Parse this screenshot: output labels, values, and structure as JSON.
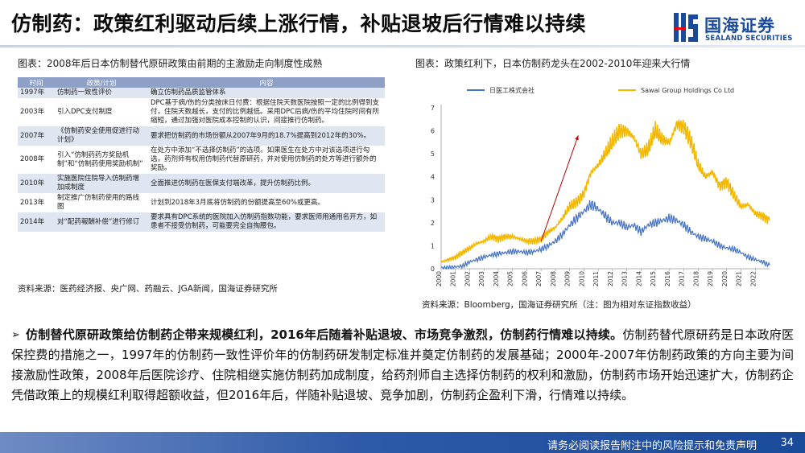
{
  "header": {
    "title": "仿制药：政策红利驱动后续上涨行情，补贴退坡后行情难以持续",
    "logo_cn": "国海证券",
    "logo_en": "SEALAND SECURITIES"
  },
  "left": {
    "caption": "图表：2008年后日本仿制替代原研政策由前期的主激励走向制度性成熟",
    "columns": [
      "时间",
      "政策/计划",
      "内容"
    ],
    "rows": [
      {
        "year": "1997年",
        "policy": "仿制药一致性评价",
        "content": "确立仿制药品质监管体系"
      },
      {
        "year": "2003年",
        "policy": "引入DPC支付制度",
        "content": "DPC基于病/伤的分类按床日付费：根据住院天数医院按照一定的比例得到支付，住院天数越长，支付的比例越低。采用DPC后病/伤的平均住院时间有所缩短，通过加强对医院成本控制的认识，间接推行仿制药。"
      },
      {
        "year": "2007年",
        "policy": "《仿制药安全使用促进行动计划》",
        "content": "要求把仿制药的市场份额从2007年9月的18.7%提高到2012年的30%。"
      },
      {
        "year": "2008年",
        "policy": "引入“仿制药药方奖励机制”和“仿制药使用奖励机制”",
        "content": "在处方中添加“不选择仿制药”的选项。如果医生在处方中对该选项进行勾选，药剂师有权用仿制药代替原研药，并对使用仿制药的处方等进行额外的奖励。"
      },
      {
        "year": "2010年",
        "policy": "实施医院住院导入仿制药增加成制度",
        "content": "全面推进仿制药在医保支付端改革，提升仿制药比例。"
      },
      {
        "year": "2013年",
        "policy": "制定推广仿制药使用的路线图",
        "content": "计划到2018年3月底将仿制药的份额提高至60%或更高。"
      },
      {
        "year": "2014年",
        "policy": "对“配药報酬补偿”进行修订",
        "content": "要求具有DPC系统的医院加入仿制药指数功能，要求医师用通用名开方，如患者不接受仿制药，可能要完全自掏腰包。"
      }
    ],
    "source": "资料来源：医药经济报、央广网、药融云、JGA新闻，国海证券研究所"
  },
  "right": {
    "caption": "图表：政策红利下，日本仿制药龙头在2002-2010年迎来大行情",
    "source": "资料来源：Bloomberg，国海证券研究所（注：图为相对东证指数收益）"
  },
  "chart_data": {
    "type": "line",
    "ylim": [
      0,
      7
    ],
    "yticks": [
      "0",
      "1",
      "2",
      "3",
      "4",
      "5",
      "6",
      "7"
    ],
    "xticks": [
      "2000",
      "2001",
      "2002",
      "2003",
      "2004",
      "2005",
      "2006",
      "2007",
      "2008",
      "2009",
      "2010",
      "2011",
      "2012",
      "2013",
      "2014",
      "2015",
      "2016",
      "2017",
      "2018",
      "2019",
      "2020",
      "2021",
      "2022"
    ],
    "legend_position": "top",
    "grid": false,
    "x": [
      2000.0,
      2000.5,
      2001.0,
      2001.5,
      2002.0,
      2002.5,
      2003.0,
      2003.5,
      2004.0,
      2004.5,
      2005.0,
      2005.5,
      2006.0,
      2006.5,
      2007.0,
      2007.5,
      2008.0,
      2008.5,
      2009.0,
      2009.5,
      2010.0,
      2010.5,
      2011.0,
      2011.5,
      2012.0,
      2012.5,
      2013.0,
      2013.5,
      2014.0,
      2014.5,
      2015.0,
      2015.5,
      2016.0,
      2016.5,
      2017.0,
      2017.5,
      2018.0,
      2018.5,
      2019.0,
      2019.5,
      2020.0,
      2020.5,
      2021.0,
      2021.5,
      2022.0,
      2022.5,
      2023.0
    ],
    "series": [
      {
        "name": "日医工株式会社",
        "color": "#4472c4",
        "values": [
          0.05,
          0.05,
          0.08,
          0.12,
          0.3,
          0.4,
          0.5,
          0.6,
          0.65,
          0.7,
          0.75,
          0.75,
          0.7,
          0.75,
          0.85,
          1.0,
          1.2,
          1.5,
          1.9,
          2.2,
          2.5,
          2.8,
          2.6,
          2.3,
          2.0,
          2.0,
          1.8,
          1.9,
          1.6,
          1.9,
          2.0,
          2.1,
          2.2,
          2.1,
          1.9,
          1.6,
          1.4,
          1.3,
          1.2,
          1.0,
          0.9,
          0.85,
          0.7,
          0.5,
          0.4,
          0.3,
          0.15
        ]
      },
      {
        "name": "Sawai Group Holdings Co Ltd",
        "color": "#f5b800",
        "values": [
          0.3,
          0.4,
          0.5,
          0.7,
          0.9,
          1.1,
          1.2,
          1.4,
          1.3,
          1.4,
          1.4,
          1.3,
          1.2,
          1.2,
          1.3,
          1.6,
          1.8,
          2.2,
          2.7,
          2.9,
          3.3,
          4.2,
          4.5,
          5.0,
          5.5,
          6.0,
          6.0,
          5.7,
          5.0,
          5.2,
          6.0,
          5.6,
          5.5,
          6.3,
          6.2,
          5.5,
          4.5,
          4.0,
          4.2,
          3.6,
          3.8,
          3.2,
          2.7,
          2.8,
          2.4,
          2.3,
          2.1
        ]
      }
    ],
    "annotation": {
      "type": "arrow",
      "from": [
        2007.0,
        1.2
      ],
      "to": [
        2009.6,
        5.8
      ],
      "color": "#c00000"
    }
  },
  "body": {
    "bold_lead": "仿制替代原研政策给仿制药企带来规模红利，2016年后随着补贴退坡、市场竞争激烈，仿制药行情难以持续。",
    "text": "仿制药替代原研药是日本政府医保控费的措施之一，1997年的仿制药一致性评价年的仿制药研发制定标准并奠定仿制药的发展基础；2000年-2007年仿制药政策的方向主要为间接激励性政策，2008年后医院诊疗、住院相继实施仿制药加成制度，给药剂师自主选择仿制药的权利和激励，仿制药市场开始迅速扩大，仿制药企凭借政策上的规模红利取得超额收益，但2016年后，伴随补贴退坡、竞争加剧，仿制药企盈利下滑，行情难以持续。"
  },
  "footer": {
    "disclaimer": "请务必阅读报告附注中的风险提示和免责声明",
    "page": "34"
  }
}
